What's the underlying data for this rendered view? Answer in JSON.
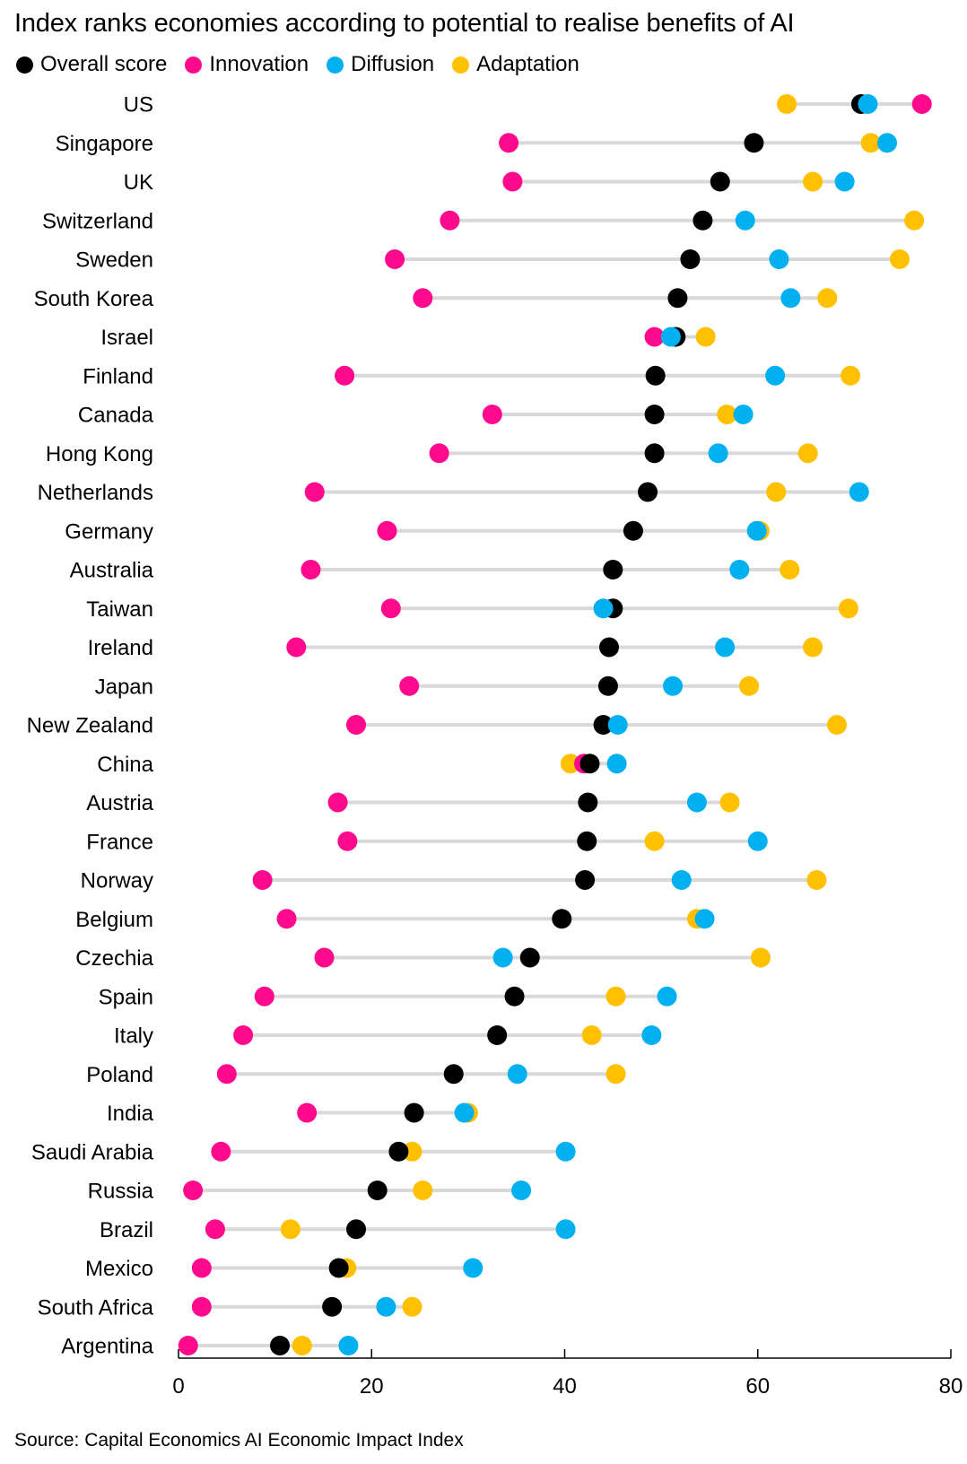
{
  "chart_data": {
    "type": "dot",
    "title": "Index ranks economies according to potential to realise benefits of AI",
    "source": "Source: Capital Economics AI Economic Impact Index",
    "xlim": [
      0,
      80
    ],
    "xticks": [
      "0",
      "20",
      "40",
      "60",
      "80"
    ],
    "legend_position": "top-left",
    "grid": false,
    "series": [
      {
        "name": "Overall score",
        "color": "#000000"
      },
      {
        "name": "Innovation",
        "color": "#ff0a8d"
      },
      {
        "name": "Diffusion",
        "color": "#00b0f0"
      },
      {
        "name": "Adaptation",
        "color": "#ffc000"
      }
    ],
    "categories": [
      "US",
      "Singapore",
      "UK",
      "Switzerland",
      "Sweden",
      "South Korea",
      "Israel",
      "Finland",
      "Canada",
      "Hong Kong",
      "Netherlands",
      "Germany",
      "Australia",
      "Taiwan",
      "Ireland",
      "Japan",
      "New Zealand",
      "China",
      "Austria",
      "France",
      "Norway",
      "Belgium",
      "Czechia",
      "Spain",
      "Italy",
      "Poland",
      "India",
      "Saudi Arabia",
      "Russia",
      "Brazil",
      "Mexico",
      "South Africa",
      "Argentina"
    ],
    "values": {
      "Overall score": [
        70.7,
        59.6,
        56.1,
        54.3,
        53.0,
        51.7,
        51.5,
        49.4,
        49.3,
        49.3,
        48.6,
        47.1,
        45.0,
        45.0,
        44.6,
        44.5,
        44.0,
        42.6,
        42.4,
        42.3,
        42.1,
        39.7,
        36.4,
        34.8,
        33.0,
        28.5,
        24.4,
        22.8,
        20.6,
        18.4,
        16.6,
        15.9,
        10.5
      ],
      "Innovation": [
        77.0,
        34.2,
        34.6,
        28.1,
        22.4,
        25.3,
        49.3,
        17.2,
        32.5,
        27.0,
        14.1,
        21.6,
        13.7,
        22.0,
        12.2,
        23.9,
        18.4,
        42.0,
        16.5,
        17.5,
        8.7,
        11.2,
        15.1,
        8.9,
        6.7,
        5.0,
        13.3,
        4.4,
        1.5,
        3.8,
        2.4,
        2.4,
        1.0
      ],
      "Diffusion": [
        71.4,
        73.4,
        69.0,
        58.7,
        62.2,
        63.4,
        51.0,
        61.8,
        58.5,
        55.9,
        70.5,
        59.9,
        58.1,
        44.0,
        56.6,
        51.2,
        45.5,
        45.4,
        53.7,
        60.0,
        52.1,
        54.5,
        33.6,
        50.6,
        49.0,
        35.1,
        29.6,
        40.1,
        35.5,
        40.1,
        30.5,
        21.5,
        17.6
      ],
      "Adaptation": [
        63.0,
        71.7,
        65.7,
        76.2,
        74.7,
        67.2,
        54.6,
        69.6,
        56.8,
        65.2,
        61.9,
        60.2,
        63.3,
        69.4,
        65.7,
        59.1,
        68.2,
        40.6,
        57.1,
        49.3,
        66.1,
        53.7,
        60.3,
        45.3,
        42.8,
        45.3,
        30.0,
        24.2,
        25.3,
        11.6,
        17.4,
        24.2,
        12.8
      ]
    }
  }
}
